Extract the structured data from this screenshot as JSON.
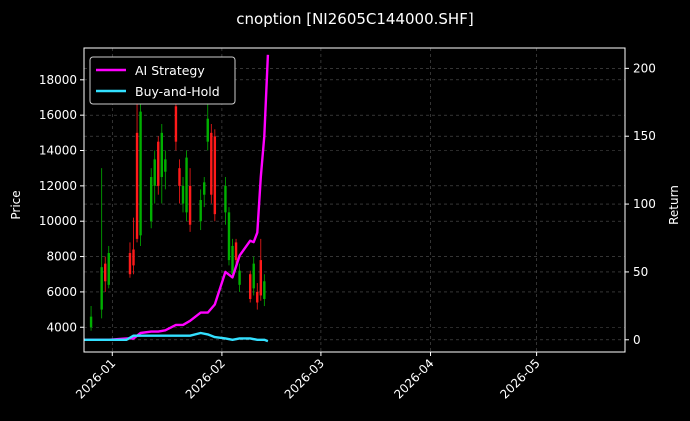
{
  "chart_data": {
    "type": "line",
    "title": "cnoption [NI2605C144000.SHF]",
    "ylabel_left": "Price",
    "ylabel_right": "Return",
    "left_ticks": [
      4000,
      6000,
      8000,
      10000,
      12000,
      14000,
      16000,
      18000
    ],
    "left_ylim": [
      2600,
      19800
    ],
    "right_ticks": [
      0,
      50,
      100,
      150,
      200
    ],
    "right_ylim": [
      -9,
      215
    ],
    "xlim": [
      "2025-12-24",
      "2026-05-26"
    ],
    "x_ticks": [
      "2026-01",
      "2026-02",
      "2026-03",
      "2026-04",
      "2026-05"
    ],
    "grid": true,
    "legend_placement": "top-left",
    "colors": {
      "background": "#000000",
      "grid": "#555555",
      "up": "#00b000",
      "down": "#ff1a1a",
      "strategy": "#ff00ff",
      "buyhold": "#33e0ff"
    },
    "candles": [
      {
        "date": "2025-12-26",
        "open": 4000,
        "high": 5200,
        "low": 3800,
        "close": 4600
      },
      {
        "date": "2025-12-29",
        "open": 5000,
        "high": 13000,
        "low": 4500,
        "close": 7400
      },
      {
        "date": "2025-12-30",
        "open": 7600,
        "high": 8000,
        "low": 6000,
        "close": 6600
      },
      {
        "date": "2025-12-31",
        "open": 6400,
        "high": 8600,
        "low": 6200,
        "close": 8200
      },
      {
        "date": "2026-01-06",
        "open": 8200,
        "high": 8800,
        "low": 6800,
        "close": 7000
      },
      {
        "date": "2026-01-07",
        "open": 8400,
        "high": 10200,
        "low": 7000,
        "close": 7500
      },
      {
        "date": "2026-01-08",
        "open": 15000,
        "high": 18000,
        "low": 8800,
        "close": 9000
      },
      {
        "date": "2026-01-09",
        "open": 9200,
        "high": 17000,
        "low": 8600,
        "close": 16200
      },
      {
        "date": "2026-01-12",
        "open": 10000,
        "high": 13000,
        "low": 9600,
        "close": 12500
      },
      {
        "date": "2026-01-13",
        "open": 12000,
        "high": 14000,
        "low": 11000,
        "close": 13500
      },
      {
        "date": "2026-01-14",
        "open": 14500,
        "high": 14800,
        "low": 11500,
        "close": 12000
      },
      {
        "date": "2026-01-15",
        "open": 12500,
        "high": 15500,
        "low": 11000,
        "close": 15000
      },
      {
        "date": "2026-01-16",
        "open": 12800,
        "high": 14000,
        "low": 11800,
        "close": 13500
      },
      {
        "date": "2026-01-19",
        "open": 16500,
        "high": 16800,
        "low": 14000,
        "close": 14500
      },
      {
        "date": "2026-01-20",
        "open": 13000,
        "high": 13500,
        "low": 11000,
        "close": 12000
      },
      {
        "date": "2026-01-21",
        "open": 11000,
        "high": 12500,
        "low": 10500,
        "close": 12000
      },
      {
        "date": "2026-01-22",
        "open": 10500,
        "high": 14000,
        "low": 10000,
        "close": 13600
      },
      {
        "date": "2026-01-23",
        "open": 12000,
        "high": 13000,
        "low": 9400,
        "close": 9800
      },
      {
        "date": "2026-01-26",
        "open": 10000,
        "high": 11800,
        "low": 9500,
        "close": 11200
      },
      {
        "date": "2026-01-27",
        "open": 11500,
        "high": 12500,
        "low": 10800,
        "close": 12200
      },
      {
        "date": "2026-01-28",
        "open": 14500,
        "high": 16800,
        "low": 14000,
        "close": 15800
      },
      {
        "date": "2026-01-29",
        "open": 15000,
        "high": 15500,
        "low": 11000,
        "close": 11500
      },
      {
        "date": "2026-01-30",
        "open": 14800,
        "high": 15200,
        "low": 10000,
        "close": 10400
      },
      {
        "date": "2026-02-02",
        "open": 10500,
        "high": 12500,
        "low": 9800,
        "close": 12000
      },
      {
        "date": "2026-02-03",
        "open": 7800,
        "high": 10800,
        "low": 7500,
        "close": 10500
      },
      {
        "date": "2026-02-04",
        "open": 7000,
        "high": 9000,
        "low": 6800,
        "close": 8600
      },
      {
        "date": "2026-02-05",
        "open": 8800,
        "high": 9000,
        "low": 7500,
        "close": 7800
      },
      {
        "date": "2026-02-06",
        "open": 6400,
        "high": 7600,
        "low": 6000,
        "close": 7200
      },
      {
        "date": "2026-02-09",
        "open": 7000,
        "high": 7200,
        "low": 5400,
        "close": 5600
      },
      {
        "date": "2026-02-10",
        "open": 6200,
        "high": 8000,
        "low": 5800,
        "close": 7600
      },
      {
        "date": "2026-02-11",
        "open": 6000,
        "high": 6500,
        "low": 5000,
        "close": 5400
      },
      {
        "date": "2026-02-12",
        "open": 7800,
        "high": 9000,
        "low": 5500,
        "close": 5800
      },
      {
        "date": "2026-02-13",
        "open": 5600,
        "high": 7000,
        "low": 5200,
        "close": 6600
      }
    ],
    "series": [
      {
        "name": "AI Strategy",
        "x": [
          "2025-12-24",
          "2025-12-26",
          "2025-12-29",
          "2025-12-31",
          "2026-01-05",
          "2026-01-07",
          "2026-01-09",
          "2026-01-12",
          "2026-01-14",
          "2026-01-16",
          "2026-01-19",
          "2026-01-21",
          "2026-01-23",
          "2026-01-26",
          "2026-01-28",
          "2026-01-30",
          "2026-02-02",
          "2026-02-04",
          "2026-02-06",
          "2026-02-09",
          "2026-02-10",
          "2026-02-11",
          "2026-02-12",
          "2026-02-13",
          "2026-02-14"
        ],
        "values": [
          0,
          0,
          0,
          0,
          1,
          1,
          5,
          6,
          6,
          7,
          11,
          11,
          14,
          20,
          20,
          26,
          50,
          46,
          62,
          73,
          72,
          79,
          120,
          150,
          210
        ]
      },
      {
        "name": "Buy-and-Hold",
        "x": [
          "2025-12-24",
          "2025-12-26",
          "2025-12-29",
          "2025-12-31",
          "2026-01-05",
          "2026-01-07",
          "2026-01-09",
          "2026-01-12",
          "2026-01-14",
          "2026-01-16",
          "2026-01-19",
          "2026-01-21",
          "2026-01-23",
          "2026-01-26",
          "2026-01-28",
          "2026-01-30",
          "2026-02-02",
          "2026-02-04",
          "2026-02-06",
          "2026-02-09",
          "2026-02-11",
          "2026-02-12",
          "2026-02-13",
          "2026-02-14"
        ],
        "values": [
          0,
          0,
          0,
          0,
          0,
          3,
          3,
          3,
          3,
          3,
          3,
          3,
          3,
          5,
          4,
          2,
          1,
          0,
          1,
          1,
          0,
          0,
          0,
          -1
        ]
      }
    ]
  }
}
